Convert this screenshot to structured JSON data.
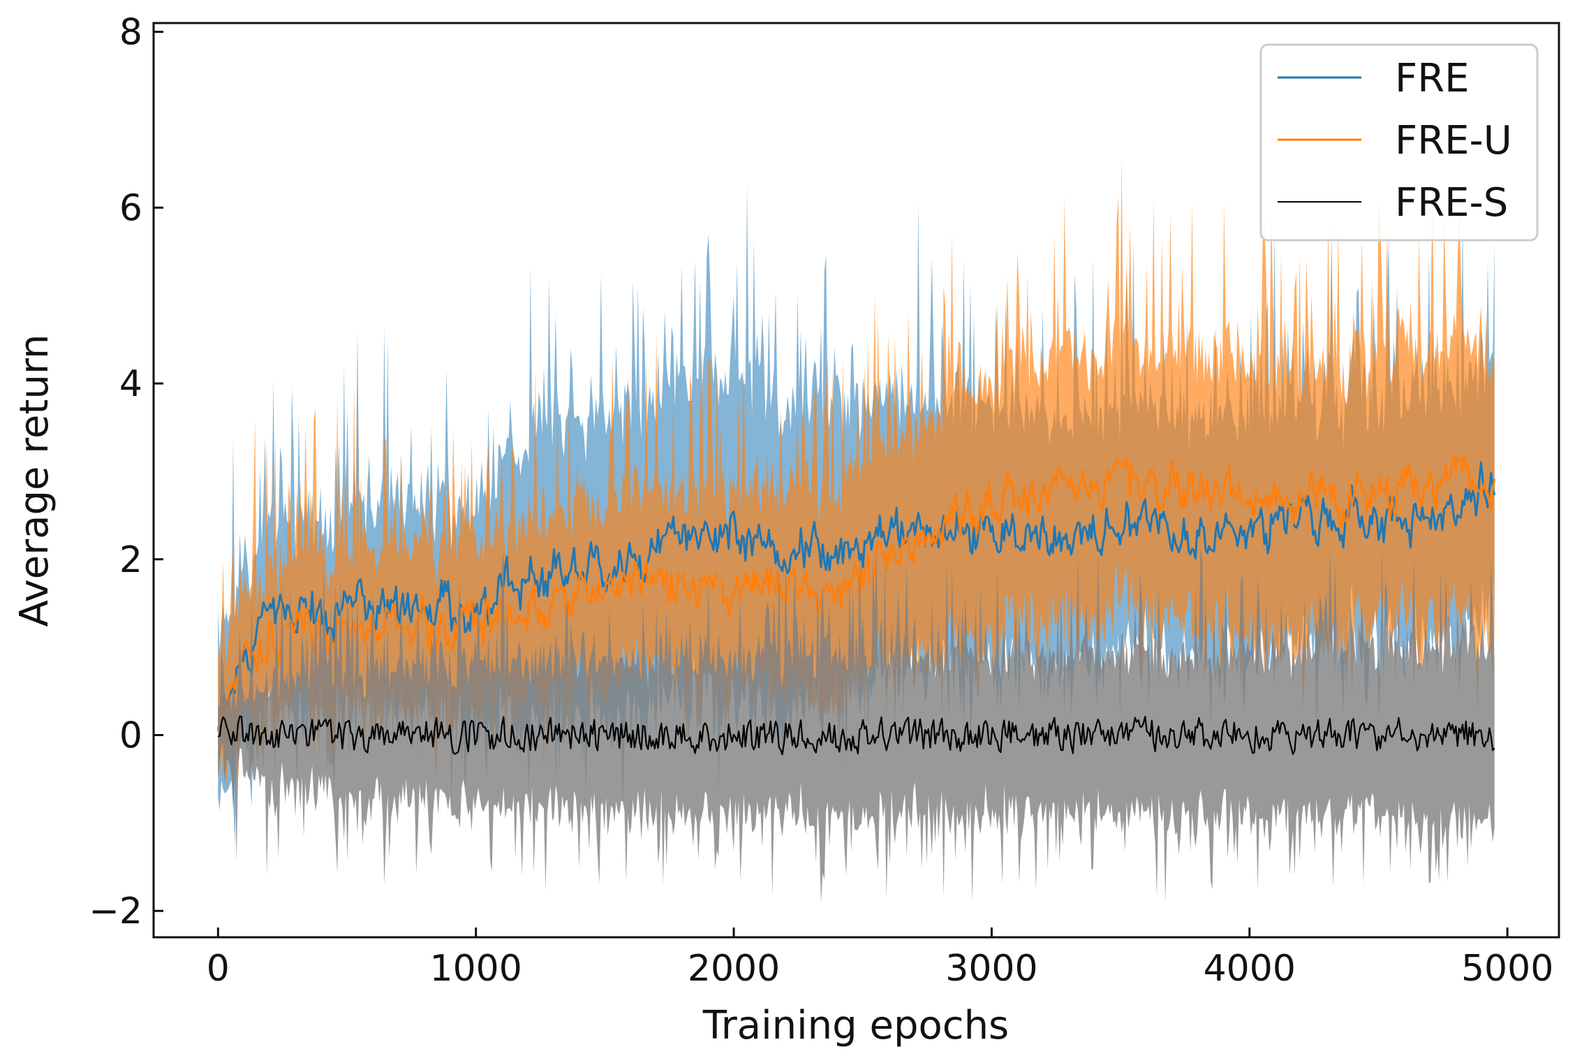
{
  "chart_data": {
    "type": "line",
    "xlabel": "Training epochs",
    "ylabel": "Average return",
    "xlim": [
      -250,
      5200
    ],
    "ylim": [
      -2.3,
      8.1
    ],
    "x_ticks": [
      0,
      1000,
      2000,
      3000,
      4000,
      5000
    ],
    "x_tick_labels": [
      "0",
      "1000",
      "2000",
      "3000",
      "4000",
      "5000"
    ],
    "y_ticks": [
      -2,
      0,
      2,
      4,
      6,
      8
    ],
    "y_tick_labels": [
      "−2",
      "0",
      "2",
      "4",
      "6",
      "8"
    ],
    "grid": false,
    "legend_position": "top-right",
    "x_end": 4950,
    "series": [
      {
        "name": "FRE",
        "color": "#1f77b4",
        "band_alpha": 0.55,
        "mean_points": [
          [
            0,
            0.1
          ],
          [
            100,
            1.0
          ],
          [
            200,
            1.3
          ],
          [
            400,
            1.4
          ],
          [
            600,
            1.5
          ],
          [
            800,
            1.4
          ],
          [
            1000,
            1.4
          ],
          [
            1200,
            1.8
          ],
          [
            1400,
            2.0
          ],
          [
            1600,
            2.0
          ],
          [
            1800,
            2.3
          ],
          [
            2000,
            2.3
          ],
          [
            2200,
            2.1
          ],
          [
            2400,
            2.1
          ],
          [
            2600,
            2.3
          ],
          [
            2800,
            2.3
          ],
          [
            3000,
            2.3
          ],
          [
            3200,
            2.3
          ],
          [
            3400,
            2.3
          ],
          [
            3600,
            2.4
          ],
          [
            3800,
            2.3
          ],
          [
            4000,
            2.3
          ],
          [
            4200,
            2.4
          ],
          [
            4400,
            2.5
          ],
          [
            4600,
            2.5
          ],
          [
            4800,
            2.6
          ],
          [
            4950,
            2.8
          ]
        ],
        "band_halfwidth_points": [
          [
            0,
            0.9
          ],
          [
            300,
            1.0
          ],
          [
            1000,
            1.1
          ],
          [
            1200,
            1.6
          ],
          [
            2000,
            1.8
          ],
          [
            2600,
            1.5
          ],
          [
            3500,
            1.3
          ],
          [
            4950,
            1.3
          ]
        ]
      },
      {
        "name": "FRE-U",
        "color": "#ff7f0e",
        "band_alpha": 0.65,
        "mean_points": [
          [
            0,
            0.1
          ],
          [
            100,
            0.9
          ],
          [
            200,
            1.1
          ],
          [
            400,
            1.2
          ],
          [
            600,
            1.2
          ],
          [
            800,
            1.2
          ],
          [
            1000,
            1.3
          ],
          [
            1200,
            1.4
          ],
          [
            1400,
            1.6
          ],
          [
            1600,
            1.7
          ],
          [
            1800,
            1.7
          ],
          [
            2000,
            1.6
          ],
          [
            2200,
            1.8
          ],
          [
            2400,
            1.6
          ],
          [
            2600,
            2.0
          ],
          [
            2800,
            2.4
          ],
          [
            3000,
            2.6
          ],
          [
            3200,
            2.8
          ],
          [
            3400,
            2.9
          ],
          [
            3600,
            2.9
          ],
          [
            3800,
            2.8
          ],
          [
            4000,
            2.7
          ],
          [
            4200,
            2.7
          ],
          [
            4400,
            2.7
          ],
          [
            4600,
            2.8
          ],
          [
            4800,
            2.9
          ],
          [
            4950,
            2.9
          ]
        ],
        "band_halfwidth_points": [
          [
            0,
            0.6
          ],
          [
            300,
            0.8
          ],
          [
            1000,
            0.9
          ],
          [
            2000,
            1.0
          ],
          [
            2600,
            1.2
          ],
          [
            3000,
            1.4
          ],
          [
            4950,
            1.5
          ]
        ]
      },
      {
        "name": "FRE-S",
        "color": "#000000",
        "band_color": "#7f7f7f",
        "band_alpha": 0.8,
        "mean_points": [
          [
            0,
            0.0
          ],
          [
            4950,
            0.0
          ]
        ],
        "band_halfwidth_points": [
          [
            0,
            0.3
          ],
          [
            300,
            0.6
          ],
          [
            1000,
            0.75
          ],
          [
            2000,
            0.85
          ],
          [
            3000,
            0.85
          ],
          [
            4950,
            0.9
          ]
        ]
      }
    ]
  }
}
